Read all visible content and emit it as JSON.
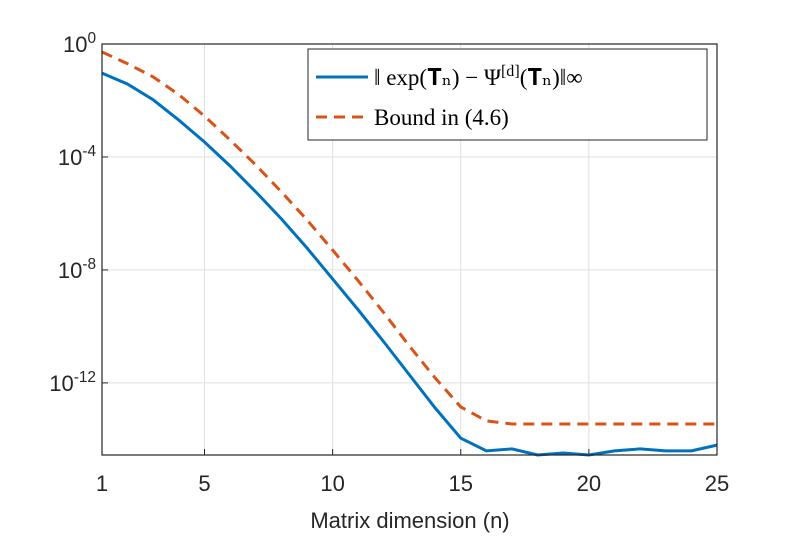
{
  "chart_data": {
    "type": "line",
    "xlabel": "Matrix dimension (n)",
    "log_y": true,
    "grid": true,
    "legend": "upper right",
    "x": [
      1,
      2,
      3,
      4,
      5,
      6,
      7,
      8,
      9,
      10,
      11,
      12,
      13,
      14,
      15,
      16,
      17,
      18,
      19,
      20,
      21,
      22,
      23,
      24,
      25
    ],
    "xlim": [
      1,
      25
    ],
    "xticks": [
      1,
      5,
      10,
      15,
      20,
      25
    ],
    "ylim": [
      2.8e-15,
      1
    ],
    "yticks": [
      {
        "value": 1,
        "label": "10^0"
      },
      {
        "value": 0.0001,
        "label": "10^-4"
      },
      {
        "value": 1e-08,
        "label": "10^-8"
      },
      {
        "value": 1e-12,
        "label": "10^-12"
      }
    ],
    "series": [
      {
        "name": "‖ exp(𝐓ₙ) − Ψ^[d](𝐓ₙ)‖∞",
        "color": "#0072bd",
        "dash": "solid",
        "values": [
          0.093,
          0.038,
          0.0105,
          0.002,
          0.00034,
          4.8e-05,
          5.8e-06,
          6.4e-07,
          6e-08,
          4.8e-09,
          3.8e-10,
          2.8e-11,
          1.9e-12,
          1.3e-13,
          1.1e-14,
          3.9e-15,
          4.6e-15,
          2.8e-15,
          3.3e-15,
          2.8e-15,
          3.9e-15,
          4.6e-15,
          3.9e-15,
          3.9e-15,
          6.3e-15
        ]
      },
      {
        "name": "Bound in (4.6)",
        "color": "#d95319",
        "dash": "dashed",
        "values": [
          0.52,
          0.2,
          0.068,
          0.016,
          0.0028,
          0.0004,
          5.2e-05,
          5.8e-06,
          5.9e-07,
          5.1e-08,
          4.1e-09,
          3e-10,
          2e-11,
          1.5e-12,
          1.4e-13,
          4.5e-14,
          3.5e-14,
          3.5e-14,
          3.5e-14,
          3.5e-14,
          3.5e-14,
          3.5e-14,
          3.5e-14,
          3.5e-14,
          3.5e-14
        ]
      }
    ]
  }
}
